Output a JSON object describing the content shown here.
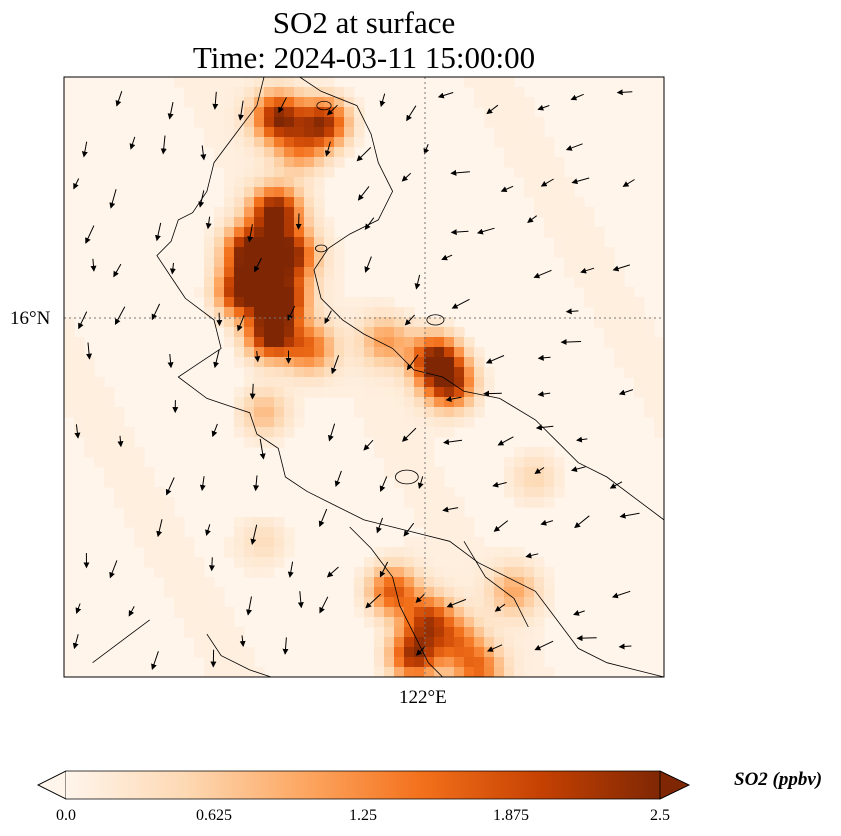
{
  "title_line1": "SO2 at surface",
  "title_line2": "Time: 2024-03-11 15:00:00",
  "chart_data": {
    "type": "heatmap",
    "variable": "SO2",
    "units": "ppbv",
    "colorbar_label": "SO2 (ppbv)",
    "colorbar_ticks": [
      "0.0",
      "0.625",
      "1.25",
      "1.875",
      "2.5"
    ],
    "vmin": 0.0,
    "vmax": 2.5,
    "colormap_stops": [
      "#fff5eb",
      "#fdd9b4",
      "#fda762",
      "#f3701b",
      "#c54102",
      "#7f2704"
    ],
    "lat_tick_label": "16°N",
    "lon_tick_label": "122°E",
    "extent": {
      "lon": [
        119.9,
        124.1
      ],
      "lat": [
        12.9,
        17.1
      ]
    },
    "hotspots": [
      {
        "lon": 121.4,
        "lat": 16.82,
        "value": 2.3
      },
      {
        "lon": 121.72,
        "lat": 16.78,
        "value": 2.2
      },
      {
        "lon": 121.55,
        "lat": 16.6,
        "value": 1.1
      },
      {
        "lon": 121.38,
        "lat": 16.15,
        "value": 2.6
      },
      {
        "lon": 121.2,
        "lat": 15.88,
        "value": 2.6
      },
      {
        "lon": 121.48,
        "lat": 15.85,
        "value": 2.4
      },
      {
        "lon": 121.15,
        "lat": 15.6,
        "value": 2.6
      },
      {
        "lon": 121.42,
        "lat": 15.55,
        "value": 2.6
      },
      {
        "lon": 121.35,
        "lat": 15.3,
        "value": 2.6
      },
      {
        "lon": 121.62,
        "lat": 15.2,
        "value": 1.4
      },
      {
        "lon": 122.15,
        "lat": 15.25,
        "value": 1.0
      },
      {
        "lon": 122.5,
        "lat": 15.12,
        "value": 2.4
      },
      {
        "lon": 122.6,
        "lat": 14.95,
        "value": 2.1
      },
      {
        "lon": 121.3,
        "lat": 14.75,
        "value": 0.8
      },
      {
        "lon": 122.2,
        "lat": 13.5,
        "value": 1.7
      },
      {
        "lon": 122.45,
        "lat": 13.3,
        "value": 1.8
      },
      {
        "lon": 122.35,
        "lat": 13.05,
        "value": 2.2
      },
      {
        "lon": 122.65,
        "lat": 13.15,
        "value": 1.2
      },
      {
        "lon": 122.8,
        "lat": 12.95,
        "value": 1.4
      },
      {
        "lon": 123.05,
        "lat": 13.5,
        "value": 0.9
      },
      {
        "lon": 121.3,
        "lat": 13.85,
        "value": 0.4
      },
      {
        "lon": 123.2,
        "lat": 14.3,
        "value": 0.5
      }
    ],
    "wind_vectors": "black arrows over the field, predominantly from north-east toward south-west",
    "coastlines": true,
    "gridlines": "dotted at 16°N and 122°E"
  }
}
